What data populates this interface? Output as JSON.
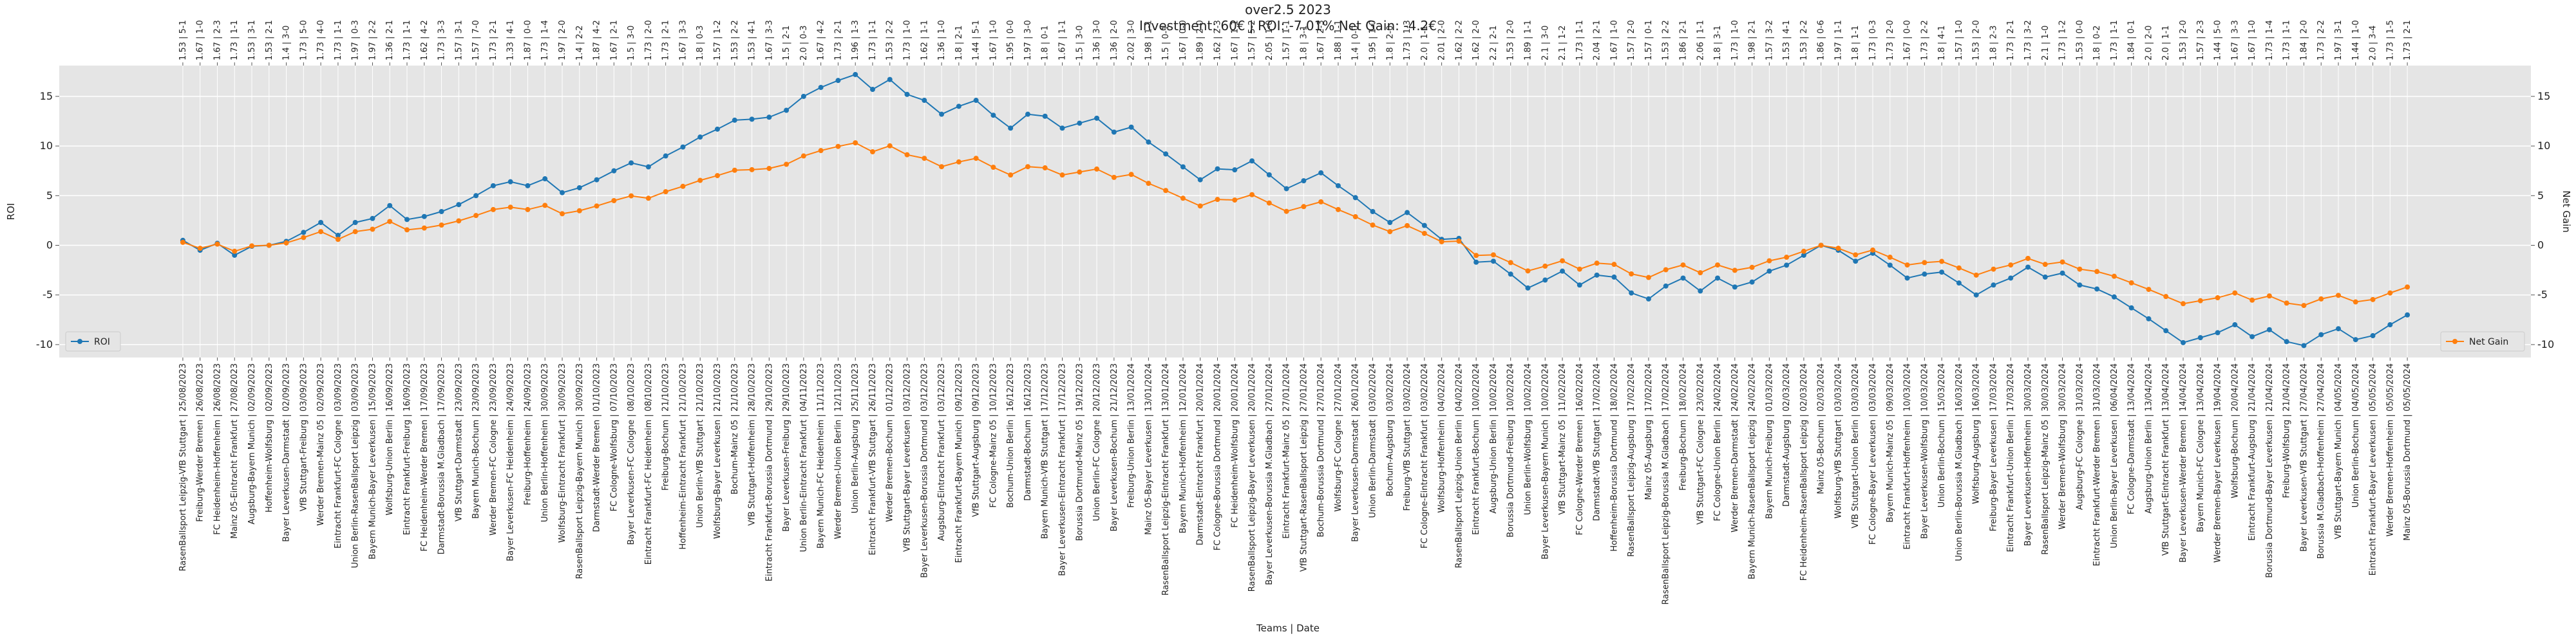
{
  "chart_data": {
    "type": "line",
    "title": "over2.5 2023",
    "subtitle": "Investment: 60€ | ROI: -7.01% Net Gain: -4.2€",
    "xlabel": "Teams | Date",
    "ylabel": "ROI",
    "y2label": "Net Gain",
    "grid": true,
    "categories": [
      "RasenBallsport Leipzig-VfB Stuttgart | 25/08/2023",
      "Freiburg-Werder Bremen | 26/08/2023",
      "FC Heidenheim-Hoffenheim | 26/08/2023",
      "Mainz 05-Eintracht Frankfurt | 27/08/2023",
      "Augsburg-Bayern Munich | 02/09/2023",
      "Hoffenheim-Wolfsburg | 02/09/2023",
      "Bayer Leverkusen-Darmstadt | 02/09/2023",
      "VfB Stuttgart-Freiburg | 03/09/2023",
      "Werder Bremen-Mainz 05 | 02/09/2023",
      "Eintracht Frankfurt-FC Cologne | 03/09/2023",
      "Union Berlin-RasenBallsport Leipzig | 03/09/2023",
      "Bayern Munich-Bayer Leverkusen | 15/09/2023",
      "Wolfsburg-Union Berlin | 16/09/2023",
      "Eintracht Frankfurt-Freiburg | 16/09/2023",
      "FC Heidenheim-Werder Bremen | 17/09/2023",
      "Darmstadt-Borussia M.Gladbach | 17/09/2023",
      "VfB Stuttgart-Darmstadt | 23/09/2023",
      "Bayern Munich-Bochum | 23/09/2023",
      "Werder Bremen-FC Cologne | 23/09/2023",
      "Bayer Leverkusen-FC Heidenheim | 24/09/2023",
      "Freiburg-Hoffenheim | 24/09/2023",
      "Union Berlin-Hoffenheim | 30/09/2023",
      "Wolfsburg-Eintracht Frankfurt | 30/09/2023",
      "RasenBallsport Leipzig-Bayern Munich | 30/09/2023",
      "Darmstadt-Werder Bremen | 01/10/2023",
      "FC Cologne-Wolfsburg | 07/10/2023",
      "Bayer Leverkusen-FC Cologne | 08/10/2023",
      "Eintracht Frankfurt-FC Heidenheim | 08/10/2023",
      "Freiburg-Bochum | 21/10/2023",
      "Hoffenheim-Eintracht Frankfurt | 21/10/2023",
      "Union Berlin-VfB Stuttgart | 21/10/2023",
      "Wolfsburg-Bayer Leverkusen | 21/10/2023",
      "Bochum-Mainz 05 | 21/10/2023",
      "VfB Stuttgart-Hoffenheim | 28/10/2023",
      "Eintracht Frankfurt-Borussia Dortmund | 29/10/2023",
      "Bayer Leverkusen-Freiburg | 29/10/2023",
      "Union Berlin-Eintracht Frankfurt | 04/11/2023",
      "Bayern Munich-FC Heidenheim | 11/11/2023",
      "Werder Bremen-Union Berlin | 12/11/2023",
      "Union Berlin-Augsburg | 25/11/2023",
      "Eintracht Frankfurt-VfB Stuttgart | 26/11/2023",
      "Werder Bremen-Bochum | 01/12/2023",
      "VfB Stuttgart-Bayer Leverkusen | 03/12/2023",
      "Bayer Leverkusen-Borussia Dortmund | 03/12/2023",
      "Augsburg-Eintracht Frankfurt | 03/12/2023",
      "Eintracht Frankfurt-Bayern Munich | 09/12/2023",
      "VfB Stuttgart-Augsburg | 09/12/2023",
      "FC Cologne-Mainz 05 | 10/12/2023",
      "Bochum-Union Berlin | 16/12/2023",
      "Darmstadt-Bochum | 16/12/2023",
      "Bayern Munich-VfB Stuttgart | 17/12/2023",
      "Bayer Leverkusen-Eintracht Frankfurt | 17/12/2023",
      "Borussia Dortmund-Mainz 05 | 19/12/2023",
      "Union Berlin-FC Cologne | 20/12/2023",
      "Bayer Leverkusen-Bochum | 21/12/2023",
      "Freiburg-Union Berlin | 13/01/2024",
      "Mainz 05-Bayer Leverkusen | 13/01/2024",
      "RasenBallsport Leipzig-Eintracht Frankfurt | 13/01/2024",
      "Bayern Munich-Hoffenheim | 12/01/2024",
      "Darmstadt-Eintracht Frankfurt | 20/01/2024",
      "FC Cologne-Borussia Dortmund | 20/01/2024",
      "FC Heidenheim-Wolfsburg | 20/01/2024",
      "RasenBallsport Leipzig-Bayer Leverkusen | 20/01/2024",
      "Bayer Leverkusen-Borussia M.Gladbach | 27/01/2024",
      "Eintracht Frankfurt-Mainz 05 | 27/01/2024",
      "VfB Stuttgart-RasenBallsport Leipzig | 27/01/2024",
      "Bochum-Borussia Dortmund | 27/01/2024",
      "Wolfsburg-FC Cologne | 27/01/2024",
      "Bayer Leverkusen-Darmstadt | 26/01/2024",
      "Union Berlin-Darmstadt | 03/02/2024",
      "Bochum-Augsburg | 03/02/2024",
      "Freiburg-VfB Stuttgart | 03/02/2024",
      "FC Cologne-Eintracht Frankfurt | 03/02/2024",
      "Wolfsburg-Hoffenheim | 04/02/2024",
      "RasenBallsport Leipzig-Union Berlin | 04/02/2024",
      "Eintracht Frankfurt-Bochum | 10/02/2024",
      "Augsburg-Union Berlin | 10/02/2024",
      "Borussia Dortmund-Freiburg | 10/02/2024",
      "Union Berlin-Wolfsburg | 10/02/2024",
      "Bayer Leverkusen-Bayern Munich | 10/02/2024",
      "VfB Stuttgart-Mainz 05 | 11/02/2024",
      "FC Cologne-Werder Bremen | 16/02/2024",
      "Darmstadt-VfB Stuttgart | 17/02/2024",
      "Hoffenheim-Borussia Dortmund | 18/02/2024",
      "RasenBallsport Leipzig-Augsburg | 17/02/2024",
      "Mainz 05-Augsburg | 17/02/2024",
      "RasenBallsport Leipzig-Borussia M.Gladbach | 17/02/2024",
      "Freiburg-Bochum | 18/02/2024",
      "VfB Stuttgart-FC Cologne | 23/02/2024",
      "FC Cologne-Union Berlin | 24/02/2024",
      "Werder Bremen-Darmstadt | 24/02/2024",
      "Bayern Munich-RasenBallsport Leipzig | 24/02/2024",
      "Bayern Munich-Freiburg | 01/03/2024",
      "Darmstadt-Augsburg | 02/03/2024",
      "FC Heidenheim-RasenBallsport Leipzig | 02/03/2024",
      "Mainz 05-Bochum | 02/03/2024",
      "Wolfsburg-VfB Stuttgart | 03/03/2024",
      "VfB Stuttgart-Union Berlin | 03/03/2024",
      "FC Cologne-Bayer Leverkusen | 03/03/2024",
      "Bayern Munich-Mainz 05 | 09/03/2024",
      "Eintracht Frankfurt-Hoffenheim | 10/03/2024",
      "Bayer Leverkusen-Wolfsburg | 10/03/2024",
      "Union Berlin-Bochum | 15/03/2024",
      "Union Berlin-Borussia M.Gladbach | 16/03/2024",
      "Wolfsburg-Augsburg | 16/03/2024",
      "Freiburg-Bayer Leverkusen | 17/03/2024",
      "Eintracht Frankfurt-Union Berlin | 17/03/2024",
      "Bayer Leverkusen-Hoffenheim | 30/03/2024",
      "RasenBallsport Leipzig-Mainz 05 | 30/03/2024",
      "Werder Bremen-Wolfsburg | 30/03/2024",
      "Augsburg-FC Cologne | 31/03/2024",
      "Eintracht Frankfurt-Werder Bremen | 31/03/2024",
      "Union Berlin-Bayer Leverkusen | 06/04/2024",
      "FC Cologne-Darmstadt | 13/04/2024",
      "Augsburg-Union Berlin | 13/04/2024",
      "VfB Stuttgart-Eintracht Frankfurt | 13/04/2024",
      "Bayer Leverkusen-Werder Bremen | 14/04/2024",
      "Bayern Munich-FC Cologne | 13/04/2024",
      "Werder Bremen-Bayer Leverkusen | 19/04/2024",
      "Wolfsburg-Bochum | 20/04/2024",
      "Eintracht Frankfurt-Augsburg | 21/04/2024",
      "Borussia Dortmund-Bayer Leverkusen | 21/04/2024",
      "Freiburg-Wolfsburg | 21/04/2024",
      "Bayer Leverkusen-VfB Stuttgart | 27/04/2024",
      "Borussia M.Gladbach-Hoffenheim | 27/04/2024",
      "VfB Stuttgart-Bayern Munich | 04/05/2024",
      "Union Berlin-Bochum | 04/05/2024",
      "Eintracht Frankfurt-Bayer Leverkusen | 05/05/2024",
      "Werder Bremen-Hoffenheim | 05/05/2024",
      "Mainz 05-Borussia Dortmund | 05/05/2024"
    ],
    "top_labels": [
      "1.53 | 5-1",
      "1.67 | 1-0",
      "1.67 | 2-3",
      "1.73 | 1-1",
      "1.53 | 3-1",
      "1.53 | 2-1",
      "1.4 | 3-0",
      "1.73 | 5-0",
      "1.73 | 4-0",
      "1.73 | 1-1",
      "1.97 | 0-3",
      "1.97 | 2-2",
      "1.36 | 2-1",
      "1.73 | 1-1",
      "1.62 | 4-2",
      "1.73 | 3-3",
      "1.57 | 3-1",
      "1.57 | 7-0",
      "1.73 | 2-1",
      "1.33 | 4-1",
      "1.87 | 0-0",
      "1.73 | 1-4",
      "1.97 | 2-0",
      "1.4 | 2-2",
      "1.87 | 4-2",
      "1.67 | 2-1",
      "1.5 | 3-0",
      "1.73 | 2-0",
      "1.73 | 2-1",
      "1.67 | 3-3",
      "1.8 | 0-3",
      "1.57 | 1-2",
      "1.53 | 2-2",
      "1.53 | 4-1",
      "1.67 | 3-3",
      "1.5 | 2-1",
      "2.0 | 0-3",
      "1.67 | 4-2",
      "1.73 | 2-1",
      "1.96 | 1-3",
      "1.73 | 1-1",
      "1.53 | 2-2",
      "1.73 | 1-0",
      "1.62 | 1-1",
      "1.36 | 1-0",
      "1.8 | 2-1",
      "1.44 | 5-1",
      "1.67 | 1-0",
      "1.95 | 0-0",
      "1.97 | 3-0",
      "1.8 | 0-1",
      "1.67 | 1-1",
      "1.5 | 3-0",
      "1.36 | 3-0",
      "1.36 | 2-0",
      "2.02 | 3-0",
      "1.98 | 1-1",
      "1.5 | 0-1",
      "1.67 | 0-0",
      "1.89 | 2-0",
      "1.62 | 2-3",
      "1.67 | 1-1",
      "1.57 | 5-2",
      "2.05 | 1-0",
      "1.57 | 1-1",
      "1.8 | 3-1",
      "1.67 | 2-3",
      "1.88 | 1-1",
      "1.4 | 0-0",
      "1.95 | 1-0",
      "1.8 | 2-0",
      "1.73 | 1-3",
      "2.0 | 1-1",
      "2.01 | 2-0",
      "1.62 | 2-2",
      "1.62 | 2-0",
      "2.2 | 2-1",
      "1.53 | 2-0",
      "1.89 | 1-1",
      "2.1 | 3-0",
      "2.1 | 1-2",
      "1.73 | 1-1",
      "2.04 | 2-1",
      "1.67 | 1-0",
      "1.57 | 2-0",
      "1.57 | 0-1",
      "1.53 | 2-2",
      "1.86 | 2-1",
      "2.06 | 1-1",
      "1.8 | 3-1",
      "1.73 | 1-0",
      "1.98 | 2-1",
      "1.57 | 3-2",
      "1.53 | 4-1",
      "1.53 | 2-2",
      "1.86 | 0-6",
      "1.97 | 1-1",
      "1.8 | 1-1",
      "1.73 | 0-3",
      "1.73 | 2-0",
      "1.67 | 0-0",
      "1.73 | 2-2",
      "1.8 | 4-1",
      "1.57 | 1-0",
      "1.53 | 2-0",
      "1.8 | 2-3",
      "1.73 | 2-1",
      "1.73 | 3-2",
      "2.1 | 1-0",
      "1.73 | 1-2",
      "1.53 | 0-0",
      "1.8 | 0-2",
      "1.73 | 1-1",
      "1.84 | 0-1",
      "2.0 | 2-0",
      "2.0 | 1-1",
      "1.53 | 2-0",
      "1.57 | 2-3",
      "1.44 | 5-0",
      "1.67 | 3-3",
      "1.67 | 1-0",
      "1.73 | 1-4",
      "1.73 | 1-1",
      "1.84 | 2-0",
      "1.73 | 2-2",
      "1.97 | 3-1",
      "1.44 | 1-0",
      "2.0 | 3-4",
      "1.73 | 1-5",
      "1.73 | 2-1"
    ],
    "ylim": [
      -11.3,
      18.1
    ],
    "yticks": [
      -10,
      -5,
      0,
      5,
      10,
      15
    ],
    "y2lim": [
      -11.3,
      18.1
    ],
    "y2ticks": [
      -10,
      -5,
      0,
      5,
      10,
      15
    ],
    "series": [
      {
        "name": "ROI",
        "color": "#1f77b4",
        "axis": "y",
        "legend": "lower left",
        "values": [
          0.5,
          -0.5,
          0.2,
          -1.0,
          -0.1,
          0.0,
          0.4,
          1.3,
          2.3,
          1.0,
          2.3,
          2.7,
          4.0,
          2.6,
          2.9,
          3.4,
          4.1,
          5.0,
          6.0,
          6.4,
          6.0,
          6.7,
          5.3,
          5.8,
          6.6,
          7.5,
          8.3,
          7.9,
          9.0,
          9.9,
          10.9,
          11.7,
          12.6,
          12.7,
          12.9,
          13.6,
          15.0,
          15.9,
          16.6,
          17.2,
          15.7,
          16.7,
          15.2,
          14.6,
          13.2,
          14.0,
          14.6,
          13.1,
          11.8,
          13.2,
          13.0,
          11.8,
          12.3,
          12.8,
          11.4,
          11.9,
          10.4,
          9.2,
          7.9,
          6.6,
          7.7,
          7.6,
          8.5,
          7.1,
          5.7,
          6.5,
          7.3,
          6.0,
          4.8,
          3.4,
          2.3,
          3.3,
          2.0,
          0.6,
          0.7,
          -1.7,
          -1.6,
          -2.9,
          -4.3,
          -3.5,
          -2.6,
          -4.0,
          -3.0,
          -3.2,
          -4.8,
          -5.4,
          -4.1,
          -3.3,
          -4.6,
          -3.3,
          -4.2,
          -3.7,
          -2.6,
          -2.0,
          -1.0,
          0.0,
          -0.5,
          -1.6,
          -0.8,
          -2.0,
          -3.3,
          -2.9,
          -2.7,
          -3.8,
          -5.0,
          -4.0,
          -3.3,
          -2.2,
          -3.2,
          -2.8,
          -4.0,
          -4.4,
          -5.2,
          -6.3,
          -7.4,
          -8.6,
          -9.8,
          -9.3,
          -8.8,
          -8.0,
          -9.2,
          -8.5,
          -9.7,
          -10.1,
          -9.0,
          -8.4,
          -9.5,
          -9.1,
          -8.0,
          -7.01
        ]
      },
      {
        "name": "Net Gain",
        "color": "#ff7f0e",
        "axis": "y2",
        "legend": "lower right",
        "values": [
          0.3,
          -0.3,
          0.12,
          -0.6,
          -0.06,
          0,
          0.24,
          0.78,
          1.38,
          0.6,
          1.38,
          1.62,
          2.4,
          1.56,
          1.74,
          2.04,
          2.46,
          3,
          3.6,
          3.84,
          3.6,
          4.02,
          3.18,
          3.48,
          3.96,
          4.5,
          4.98,
          4.74,
          5.4,
          5.94,
          6.54,
          7.02,
          7.56,
          7.62,
          7.74,
          8.16,
          9,
          9.54,
          9.96,
          10.32,
          9.42,
          10.02,
          9.12,
          8.76,
          7.92,
          8.4,
          8.76,
          7.86,
          7.08,
          7.92,
          7.8,
          7.08,
          7.38,
          7.68,
          6.84,
          7.14,
          6.24,
          5.52,
          4.74,
          3.96,
          4.62,
          4.56,
          5.1,
          4.26,
          3.42,
          3.9,
          4.38,
          3.6,
          2.88,
          2.04,
          1.38,
          1.98,
          1.2,
          0.36,
          0.42,
          -1.02,
          -0.96,
          -1.74,
          -2.58,
          -2.1,
          -1.56,
          -2.4,
          -1.8,
          -1.92,
          -2.88,
          -3.24,
          -2.46,
          -1.98,
          -2.76,
          -1.98,
          -2.52,
          -2.22,
          -1.56,
          -1.2,
          -0.6,
          0,
          -0.3,
          -0.96,
          -0.48,
          -1.2,
          -1.98,
          -1.74,
          -1.62,
          -2.28,
          -3,
          -2.4,
          -1.98,
          -1.32,
          -1.92,
          -1.68,
          -2.4,
          -2.64,
          -3.12,
          -3.78,
          -4.44,
          -5.16,
          -5.88,
          -5.58,
          -5.28,
          -4.8,
          -5.52,
          -5.1,
          -5.82,
          -6.06,
          -5.4,
          -5.04,
          -5.7,
          -5.46,
          -4.8,
          -4.2
        ]
      }
    ]
  }
}
